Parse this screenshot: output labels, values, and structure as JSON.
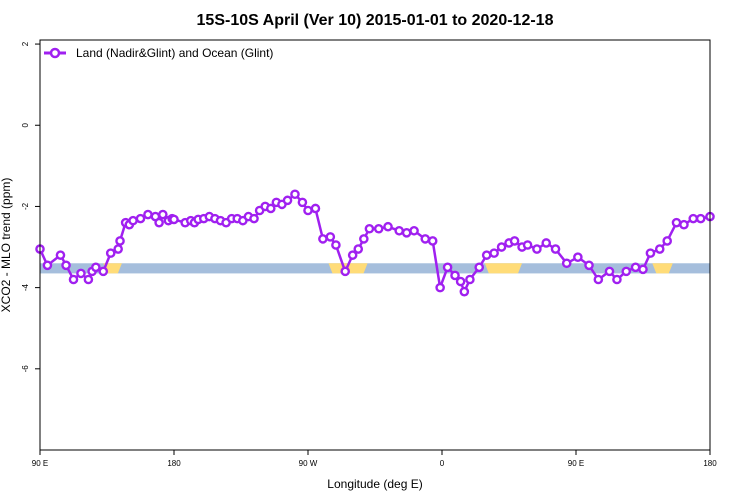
{
  "chart_data": {
    "type": "line",
    "title": "15S-10S April (Ver 10)   2015-01-01 to 2020-12-18",
    "xlabel": "Longitude (deg E)",
    "ylabel": "XCO2 - MLO trend (ppm)",
    "xlim": [
      90,
      450
    ],
    "ylim": [
      -8,
      2.1
    ],
    "x_ticks": [
      {
        "value": 90,
        "label": "90 E"
      },
      {
        "value": 162,
        "label": "180"
      },
      {
        "value": 234,
        "label": "90 W"
      },
      {
        "value": 306,
        "label": "0"
      },
      {
        "value": 378,
        "label": "90 E"
      },
      {
        "value": 450,
        "label": "180"
      }
    ],
    "y_ticks": [
      {
        "value": 2,
        "label": "2"
      },
      {
        "value": 0,
        "label": "0"
      },
      {
        "value": -2,
        "label": "-2"
      },
      {
        "value": -4,
        "label": "-4"
      },
      {
        "value": -6,
        "label": "-6"
      }
    ],
    "legend_position": "top-left",
    "grid": false,
    "colors": {
      "series": "#a020f0",
      "ocean": "#a5bedc",
      "land": "#ffdc78"
    },
    "surface_band": {
      "y_range": [
        -3.65,
        -3.4
      ],
      "land_segments": [
        [
          124,
          134
        ],
        [
          245,
          266
        ],
        [
          329,
          349
        ],
        [
          419,
          430
        ]
      ]
    },
    "series": [
      {
        "name": "Land (Nadir&Glint) and Ocean (Glint)",
        "x": [
          90,
          94,
          101,
          104,
          108,
          112,
          116,
          118,
          120,
          124,
          128,
          132,
          133,
          136,
          138,
          140,
          144,
          148,
          152,
          154,
          156,
          159,
          161,
          162,
          168,
          171,
          173,
          175,
          178,
          181,
          184,
          187,
          190,
          193,
          196,
          199,
          202,
          205,
          208,
          211,
          214,
          217,
          220,
          223,
          227,
          231,
          234,
          238,
          242,
          246,
          249,
          254,
          258,
          261,
          264,
          267,
          272,
          277,
          283,
          287,
          291,
          297,
          301,
          305,
          309,
          313,
          316,
          318,
          321,
          326,
          330,
          334,
          338,
          342,
          345,
          349,
          352,
          357,
          362,
          367,
          373,
          379,
          385,
          390,
          396,
          400,
          405,
          410,
          414,
          418,
          423,
          427,
          432,
          436,
          441,
          445,
          450
        ],
        "y": [
          -3.05,
          -3.45,
          -3.2,
          -3.45,
          -3.8,
          -3.65,
          -3.8,
          -3.6,
          -3.5,
          -3.6,
          -3.15,
          -3.05,
          -2.85,
          -2.4,
          -2.45,
          -2.35,
          -2.3,
          -2.2,
          -2.25,
          -2.4,
          -2.2,
          -2.35,
          -2.3,
          -2.32,
          -2.4,
          -2.35,
          -2.4,
          -2.32,
          -2.3,
          -2.25,
          -2.3,
          -2.35,
          -2.4,
          -2.3,
          -2.3,
          -2.35,
          -2.25,
          -2.3,
          -2.1,
          -2.0,
          -2.05,
          -1.9,
          -1.95,
          -1.85,
          -1.7,
          -1.9,
          -2.1,
          -2.05,
          -2.8,
          -2.75,
          -2.95,
          -3.6,
          -3.2,
          -3.05,
          -2.8,
          -2.55,
          -2.55,
          -2.5,
          -2.6,
          -2.65,
          -2.6,
          -2.8,
          -2.85,
          -4.0,
          -3.5,
          -3.7,
          -3.85,
          -4.1,
          -3.8,
          -3.5,
          -3.2,
          -3.15,
          -3.0,
          -2.9,
          -2.85,
          -3.0,
          -2.95,
          -3.05,
          -2.9,
          -3.05,
          -3.4,
          -3.25,
          -3.45,
          -3.8,
          -3.6,
          -3.8,
          -3.6,
          -3.5,
          -3.55,
          -3.15,
          -3.05,
          -2.85,
          -2.4,
          -2.45,
          -2.3,
          -2.3,
          -2.25
        ]
      }
    ]
  }
}
